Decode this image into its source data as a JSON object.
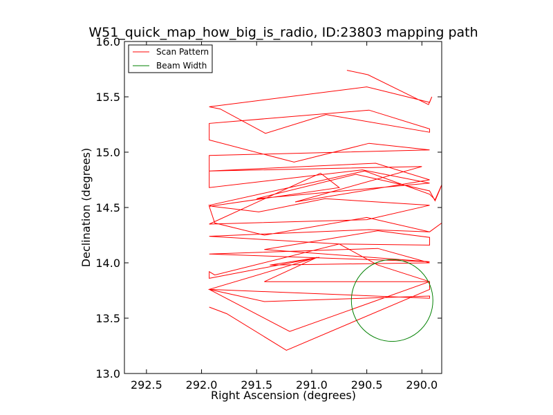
{
  "chart_data": {
    "type": "line",
    "title": "W51_quick_map_how_big_is_radio, ID:23803 mapping path",
    "xlabel": "Right Ascension (degrees)",
    "ylabel": "Declination (degrees)",
    "xlim": [
      292.7,
      289.82
    ],
    "ylim": [
      13.0,
      16.0
    ],
    "x_axis_inverted": true,
    "xticks": [
      "292.5",
      "292.0",
      "291.5",
      "291.0",
      "290.5",
      "290.0"
    ],
    "xtick_values": [
      292.5,
      292.0,
      291.5,
      291.0,
      290.5,
      290.0
    ],
    "yticks": [
      "13.0",
      "13.5",
      "14.0",
      "14.5",
      "15.0",
      "15.5",
      "16.0"
    ],
    "ytick_values": [
      13.0,
      13.5,
      14.0,
      14.5,
      15.0,
      15.5,
      16.0
    ],
    "grid": false,
    "legend_position": "top-left",
    "series": [
      {
        "name": "Scan Pattern",
        "color": "#ff0000",
        "points": [
          [
            290.68,
            15.74
          ],
          [
            290.49,
            15.7
          ],
          [
            289.94,
            15.43
          ],
          [
            289.91,
            15.5
          ],
          [
            289.93,
            15.45
          ],
          [
            290.5,
            15.59
          ],
          [
            291.93,
            15.41
          ],
          [
            291.83,
            15.39
          ],
          [
            291.42,
            15.17
          ],
          [
            290.87,
            15.34
          ],
          [
            289.93,
            15.18
          ],
          [
            289.93,
            15.21
          ],
          [
            290.48,
            15.38
          ],
          [
            291.93,
            15.26
          ],
          [
            291.93,
            15.11
          ],
          [
            291.16,
            14.91
          ],
          [
            290.48,
            15.08
          ],
          [
            289.93,
            15.02
          ],
          [
            291.93,
            14.97
          ],
          [
            291.93,
            14.83
          ],
          [
            290.42,
            14.9
          ],
          [
            289.93,
            14.75
          ],
          [
            291.15,
            14.55
          ],
          [
            290.0,
            14.87
          ],
          [
            291.93,
            14.83
          ],
          [
            291.93,
            14.68
          ],
          [
            290.54,
            14.84
          ],
          [
            289.93,
            14.72
          ],
          [
            291.5,
            14.58
          ],
          [
            290.6,
            14.8
          ],
          [
            289.93,
            14.65
          ],
          [
            289.88,
            14.56
          ],
          [
            289.8,
            14.75
          ],
          [
            289.88,
            14.57
          ],
          [
            289.93,
            14.62
          ],
          [
            290.52,
            14.83
          ],
          [
            291.93,
            14.52
          ],
          [
            291.9,
            14.51
          ],
          [
            291.48,
            14.46
          ],
          [
            290.88,
            14.58
          ],
          [
            289.93,
            14.52
          ],
          [
            290.5,
            14.39
          ],
          [
            291.93,
            14.35
          ],
          [
            290.92,
            14.81
          ],
          [
            290.75,
            14.68
          ],
          [
            291.93,
            14.51
          ],
          [
            291.88,
            14.36
          ],
          [
            291.43,
            14.25
          ],
          [
            290.5,
            14.41
          ],
          [
            289.93,
            14.28
          ],
          [
            289.82,
            14.36
          ],
          [
            289.93,
            14.28
          ],
          [
            290.48,
            14.3
          ],
          [
            291.93,
            14.24
          ],
          [
            290.75,
            14.17
          ],
          [
            289.93,
            14.16
          ],
          [
            289.93,
            14.23
          ],
          [
            290.4,
            14.29
          ],
          [
            291.43,
            14.12
          ],
          [
            289.93,
            14.01
          ],
          [
            291.93,
            14.08
          ],
          [
            290.4,
            14.13
          ],
          [
            289.93,
            14.0
          ],
          [
            291.38,
            13.98
          ],
          [
            290.93,
            14.05
          ],
          [
            291.93,
            13.86
          ],
          [
            291.93,
            13.92
          ],
          [
            291.88,
            13.89
          ],
          [
            290.75,
            14.17
          ],
          [
            290.4,
            13.98
          ],
          [
            289.93,
            13.83
          ],
          [
            291.43,
            13.83
          ],
          [
            290.95,
            14.05
          ],
          [
            291.93,
            13.76
          ],
          [
            291.43,
            13.65
          ],
          [
            289.93,
            13.7
          ],
          [
            289.93,
            13.68
          ],
          [
            291.93,
            13.76
          ],
          [
            291.2,
            13.38
          ],
          [
            289.93,
            13.83
          ],
          [
            289.93,
            13.76
          ],
          [
            291.23,
            13.21
          ],
          [
            291.77,
            13.54
          ],
          [
            291.93,
            13.6
          ]
        ]
      },
      {
        "name": "Beam Width",
        "color": "#008000",
        "shape": "circle",
        "center": [
          290.27,
          13.66
        ],
        "radius_ra": 0.37,
        "radius_dec": 0.37
      }
    ]
  }
}
